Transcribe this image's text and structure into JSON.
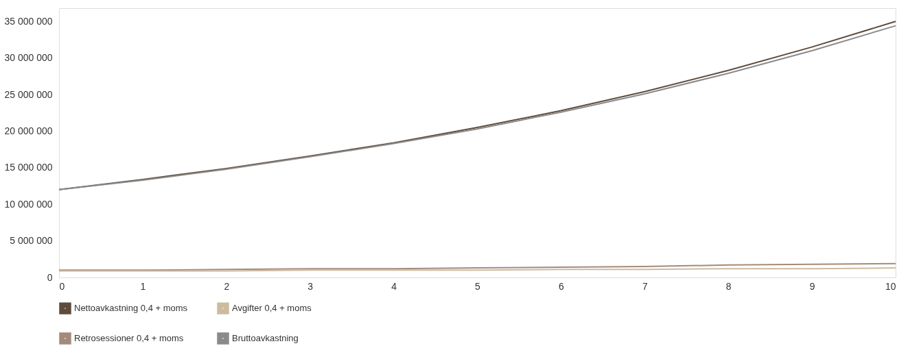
{
  "chart_data": {
    "type": "line",
    "x": [
      0,
      1,
      2,
      3,
      4,
      5,
      6,
      7,
      8,
      9,
      10
    ],
    "series": [
      {
        "name": "Nettoavkastning 0,4 + moms",
        "color": "#5e4b3c",
        "values": [
          12000000,
          13400000,
          14900000,
          16600000,
          18400000,
          20500000,
          22800000,
          25400000,
          28300000,
          31500000,
          35000000
        ]
      },
      {
        "name": "Retrosessioner 0,4 + moms",
        "color": "#a48a7b",
        "values": [
          1000000,
          1000000,
          1100000,
          1200000,
          1200000,
          1300000,
          1400000,
          1500000,
          1700000,
          1800000,
          1900000
        ]
      },
      {
        "name": "Avgifter 0,4 + moms",
        "color": "#cdbb9f",
        "values": [
          900000,
          900000,
          900000,
          1000000,
          1000000,
          1000000,
          1100000,
          1100000,
          1200000,
          1200000,
          1300000
        ]
      },
      {
        "name": "Bruttoavkastning",
        "color": "#8a8a8a",
        "values": [
          12000000,
          13300000,
          14800000,
          16500000,
          18300000,
          20300000,
          22600000,
          25100000,
          27900000,
          31000000,
          34400000
        ]
      }
    ],
    "xlim": [
      0,
      10
    ],
    "xticks": [
      0,
      1,
      2,
      3,
      4,
      5,
      6,
      7,
      8,
      9,
      10
    ],
    "ylim": [
      0,
      36800000
    ],
    "yticks": [
      {
        "value": 0,
        "label": "0"
      },
      {
        "value": 5000000,
        "label": "5 000 000"
      },
      {
        "value": 10000000,
        "label": "10 000 000"
      },
      {
        "value": 15000000,
        "label": "15 000 000"
      },
      {
        "value": 20000000,
        "label": "20 000 000"
      },
      {
        "value": 25000000,
        "label": "25 000 000"
      },
      {
        "value": 30000000,
        "label": "30 000 000"
      },
      {
        "value": 35000000,
        "label": "35 000 000"
      }
    ],
    "grid": false,
    "legend": "bottom left",
    "marker": "none",
    "line_style": "solid"
  }
}
